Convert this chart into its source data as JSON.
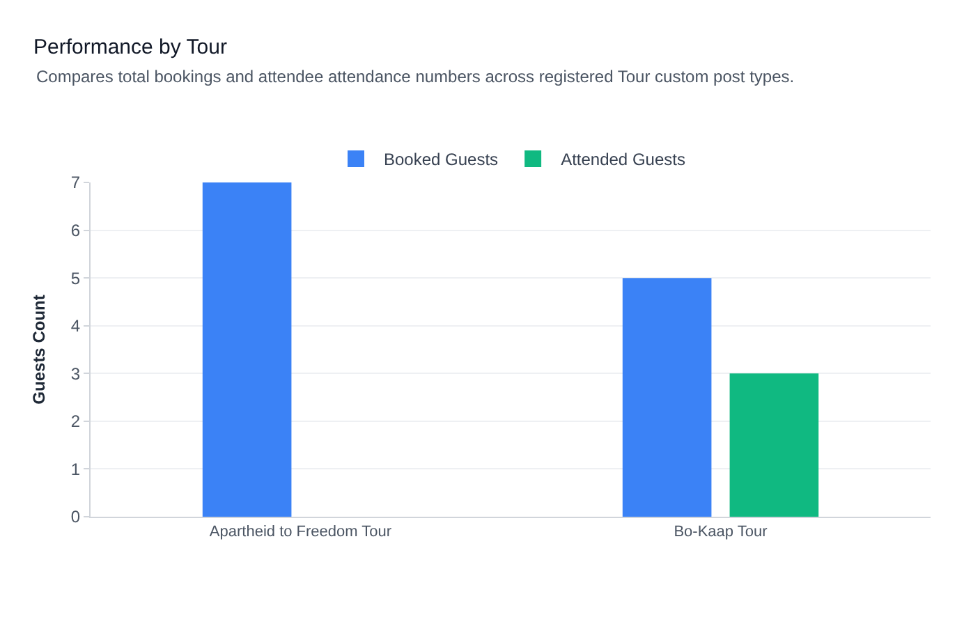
{
  "chart_data": {
    "type": "bar",
    "title": "Performance by Tour",
    "subtitle": "Compares total bookings and attendee attendance numbers across registered Tour custom post types.",
    "ylabel": "Guests Count",
    "categories": [
      "Apartheid to Freedom Tour",
      "Bo-Kaap Tour"
    ],
    "series": [
      {
        "name": "Booked Guests",
        "color": "#3b82f6",
        "values": [
          7,
          5
        ]
      },
      {
        "name": "Attended Guests",
        "color": "#10b981",
        "values": [
          0,
          3
        ]
      }
    ],
    "ylim": [
      0,
      7
    ],
    "yticks": [
      0,
      1,
      2,
      3,
      4,
      5,
      6,
      7
    ],
    "grid": "y",
    "legend": "top"
  }
}
